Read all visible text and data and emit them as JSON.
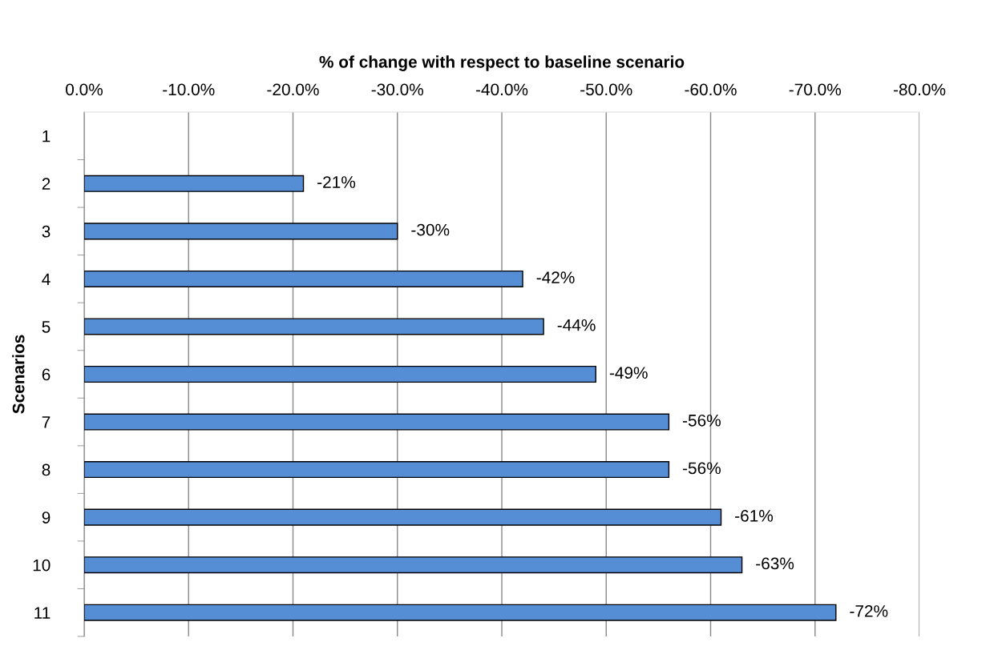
{
  "chart_data": {
    "type": "bar",
    "orientation": "horizontal",
    "xlabel": "% of change with respect to baseline scenario",
    "ylabel": "Scenarios",
    "categories": [
      "1",
      "2",
      "3",
      "4",
      "5",
      "6",
      "7",
      "8",
      "9",
      "10",
      "11"
    ],
    "values": [
      null,
      -21,
      -30,
      -42,
      -44,
      -49,
      -56,
      -56,
      -61,
      -63,
      -72
    ],
    "value_labels": [
      null,
      "-21%",
      "-30%",
      "-42%",
      "-44%",
      "-49%",
      "-56%",
      "-56%",
      "-61%",
      "-63%",
      "-72%"
    ],
    "color": "#558ed5",
    "xlim": [
      0,
      -80
    ],
    "xticks": [
      {
        "value": 0,
        "label": "0.0%"
      },
      {
        "value": -10,
        "label": "-10.0%"
      },
      {
        "value": -20,
        "label": "-20.0%"
      },
      {
        "value": -30,
        "label": "-30.0%"
      },
      {
        "value": -40,
        "label": "-40.0%"
      },
      {
        "value": -50,
        "label": "-50.0%"
      },
      {
        "value": -60,
        "label": "-60.0%"
      },
      {
        "value": -70,
        "label": "-70.0%"
      },
      {
        "value": -80,
        "label": "-80.0%"
      }
    ],
    "grid": "x",
    "legend": false
  }
}
